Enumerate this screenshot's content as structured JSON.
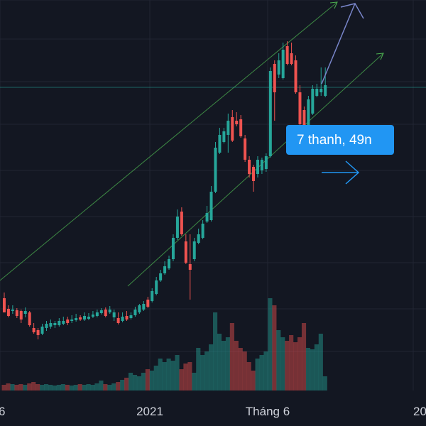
{
  "chart_data": {
    "type": "candlestick",
    "x_ticks": [
      "6",
      "2021",
      "Tháng 6",
      "20"
    ],
    "y_range": [
      0,
      600
    ],
    "price_unit": "screen-level",
    "candles": [
      [
        420,
        440,
        440,
        412,
        "down"
      ],
      [
        435,
        445,
        447,
        430,
        "down"
      ],
      [
        436,
        438,
        442,
        430,
        "up"
      ],
      [
        437,
        445,
        448,
        434,
        "down"
      ],
      [
        438,
        450,
        455,
        436,
        "down"
      ],
      [
        438,
        442,
        447,
        433,
        "up"
      ],
      [
        440,
        458,
        460,
        438,
        "down"
      ],
      [
        462,
        468,
        470,
        455,
        "down"
      ],
      [
        465,
        472,
        478,
        462,
        "down"
      ],
      [
        460,
        470,
        472,
        456,
        "up"
      ],
      [
        456,
        462,
        466,
        452,
        "up"
      ],
      [
        455,
        460,
        463,
        450,
        "up"
      ],
      [
        455,
        458,
        462,
        452,
        "up"
      ],
      [
        452,
        458,
        460,
        448,
        "up"
      ],
      [
        452,
        456,
        458,
        446,
        "up"
      ],
      [
        450,
        455,
        458,
        446,
        "down"
      ],
      [
        450,
        452,
        455,
        444,
        "up"
      ],
      [
        448,
        451,
        453,
        442,
        "up"
      ],
      [
        447,
        450,
        452,
        444,
        "down"
      ],
      [
        445,
        450,
        452,
        440,
        "up"
      ],
      [
        446,
        449,
        451,
        441,
        "up"
      ],
      [
        443,
        446,
        448,
        438,
        "up"
      ],
      [
        440,
        445,
        447,
        436,
        "up"
      ],
      [
        437,
        441,
        443,
        434,
        "up"
      ],
      [
        436,
        445,
        447,
        433,
        "down"
      ],
      [
        436,
        440,
        442,
        431,
        "up"
      ],
      [
        440,
        447,
        452,
        436,
        "up"
      ],
      [
        448,
        455,
        457,
        440,
        "down"
      ],
      [
        446,
        452,
        454,
        440,
        "up"
      ],
      [
        445,
        450,
        452,
        438,
        "down"
      ],
      [
        444,
        448,
        450,
        440,
        "up"
      ],
      [
        436,
        444,
        446,
        432,
        "up"
      ],
      [
        430,
        440,
        442,
        428,
        "up"
      ],
      [
        428,
        436,
        438,
        424,
        "up"
      ],
      [
        422,
        432,
        434,
        418,
        "down"
      ],
      [
        410,
        424,
        426,
        406,
        "up"
      ],
      [
        395,
        414,
        416,
        390,
        "up"
      ],
      [
        385,
        395,
        397,
        380,
        "up"
      ],
      [
        375,
        385,
        387,
        368,
        "up"
      ],
      [
        365,
        378,
        380,
        360,
        "up"
      ],
      [
        335,
        365,
        368,
        330,
        "up"
      ],
      [
        305,
        335,
        338,
        295,
        "up"
      ],
      [
        298,
        330,
        332,
        292,
        "down"
      ],
      [
        340,
        370,
        372,
        330,
        "down"
      ],
      [
        372,
        380,
        422,
        330,
        "down"
      ],
      [
        340,
        365,
        368,
        335,
        "up"
      ],
      [
        330,
        342,
        344,
        322,
        "up"
      ],
      [
        315,
        335,
        337,
        310,
        "up"
      ],
      [
        300,
        312,
        314,
        290,
        "up"
      ],
      [
        270,
        310,
        312,
        262,
        "up"
      ],
      [
        208,
        270,
        272,
        200,
        "up"
      ],
      [
        190,
        215,
        217,
        180,
        "up"
      ],
      [
        185,
        200,
        202,
        180,
        "up"
      ],
      [
        170,
        190,
        215,
        160,
        "up"
      ],
      [
        165,
        198,
        200,
        155,
        "down"
      ],
      [
        170,
        175,
        178,
        158,
        "down"
      ],
      [
        168,
        192,
        194,
        162,
        "down"
      ],
      [
        195,
        225,
        228,
        190,
        "down"
      ],
      [
        225,
        245,
        250,
        220,
        "down"
      ],
      [
        235,
        255,
        270,
        232,
        "down"
      ],
      [
        225,
        245,
        250,
        220,
        "up"
      ],
      [
        225,
        240,
        245,
        222,
        "up"
      ],
      [
        220,
        238,
        242,
        216,
        "up"
      ],
      [
        100,
        220,
        222,
        95,
        "up"
      ],
      [
        90,
        130,
        170,
        85,
        "down"
      ],
      [
        85,
        105,
        110,
        75,
        "up"
      ],
      [
        70,
        110,
        112,
        60,
        "up"
      ],
      [
        65,
        90,
        92,
        58,
        "down"
      ],
      [
        75,
        90,
        92,
        60,
        "down"
      ],
      [
        85,
        130,
        132,
        78,
        "down"
      ],
      [
        130,
        175,
        212,
        120,
        "down"
      ],
      [
        155,
        210,
        212,
        150,
        "down"
      ],
      [
        140,
        180,
        182,
        135,
        "up"
      ],
      [
        125,
        160,
        162,
        120,
        "up"
      ],
      [
        125,
        135,
        137,
        118,
        "up"
      ],
      [
        125,
        130,
        135,
        95,
        "up"
      ],
      [
        120,
        135,
        137,
        95,
        "up"
      ]
    ],
    "volumes_px": [
      8,
      10,
      9,
      8,
      9,
      8,
      10,
      12,
      9,
      8,
      9,
      8,
      7,
      8,
      9,
      8,
      7,
      8,
      9,
      8,
      9,
      8,
      10,
      14,
      9,
      8,
      10,
      12,
      15,
      18,
      25,
      22,
      20,
      25,
      30,
      28,
      35,
      45,
      40,
      45,
      42,
      50,
      30,
      38,
      40,
      25,
      60,
      50,
      55,
      65,
      110,
      80,
      70,
      75,
      95,
      70,
      60,
      55,
      40,
      28,
      45,
      50,
      55,
      130,
      120,
      85,
      75,
      70,
      78,
      68,
      75,
      95,
      60,
      58,
      65,
      80,
      20
    ],
    "channel_upper": [
      [
        0,
        395
      ],
      [
        475,
        3
      ]
    ],
    "channel_lower": [
      [
        180,
        403
      ],
      [
        540,
        75
      ]
    ],
    "forecast_up_arrow": [
      [
        453,
        118
      ],
      [
        500,
        5
      ]
    ],
    "forecast_flat_arrow": [
      [
        453,
        243
      ],
      [
        505,
        243
      ]
    ],
    "current_price_line_y": 123,
    "tooltip": {
      "text": "7 thanh, 49n"
    }
  }
}
